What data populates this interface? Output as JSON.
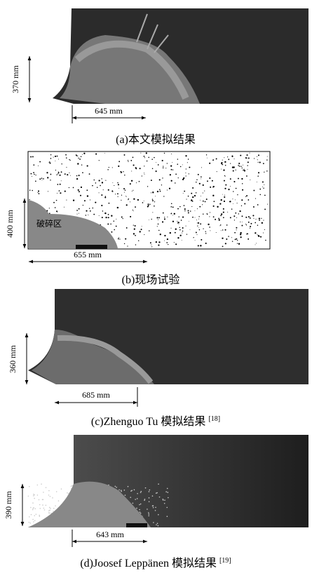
{
  "panels": [
    {
      "height_label": "370 mm",
      "width_label": "645 mm",
      "caption": "(a)本文模拟结果"
    },
    {
      "height_label": "400 mm",
      "width_label": "655 mm",
      "zone_label": "破碎区",
      "caption": "(b)现场试验"
    },
    {
      "height_label": "360 mm",
      "width_label": "685 mm",
      "caption": "(c)Zhenguo Tu 模拟结果",
      "reference": "[18]"
    },
    {
      "height_label": "390 mm",
      "width_label": "643 mm",
      "caption": "(d)Joosef Leppänen 模拟结果",
      "reference": "[19]"
    }
  ]
}
